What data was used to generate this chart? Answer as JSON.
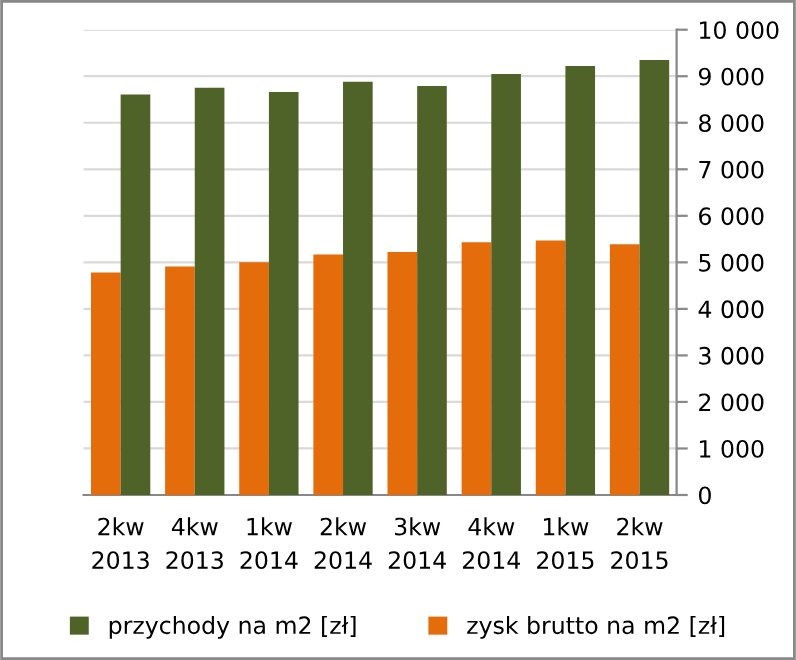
{
  "chart_data": {
    "type": "bar",
    "categories": [
      "2kw\n2013",
      "4kw\n2013",
      "1kw\n2014",
      "2kw\n2014",
      "3kw\n2014",
      "4kw\n2014",
      "1kw\n2015",
      "2kw\n2015"
    ],
    "series": [
      {
        "name": "zysk brutto na m2 [zł]",
        "color": "#e46c0a",
        "values": [
          4780,
          4910,
          5000,
          5170,
          5220,
          5430,
          5470,
          5390
        ]
      },
      {
        "name": "przychody na m2 [zł]",
        "color": "#4f6228",
        "values": [
          8610,
          8750,
          8660,
          8880,
          8790,
          9050,
          9220,
          9350
        ]
      }
    ],
    "ylim": [
      0,
      10000
    ],
    "yticks": [
      0,
      {
        "value": 1000,
        "label": "1 000"
      },
      {
        "value": 2000,
        "label": "2 000"
      },
      {
        "value": 3000,
        "label": "3 000"
      },
      {
        "value": 4000,
        "label": "4 000"
      },
      {
        "value": 5000,
        "label": "5 000"
      },
      {
        "value": 6000,
        "label": "6 000"
      },
      {
        "value": 7000,
        "label": "7 000"
      },
      {
        "value": 8000,
        "label": "8 000"
      },
      {
        "value": 9000,
        "label": "9 000"
      },
      {
        "value": 10000,
        "label": "10 000"
      }
    ],
    "grid": "y",
    "legend": "bottom"
  }
}
